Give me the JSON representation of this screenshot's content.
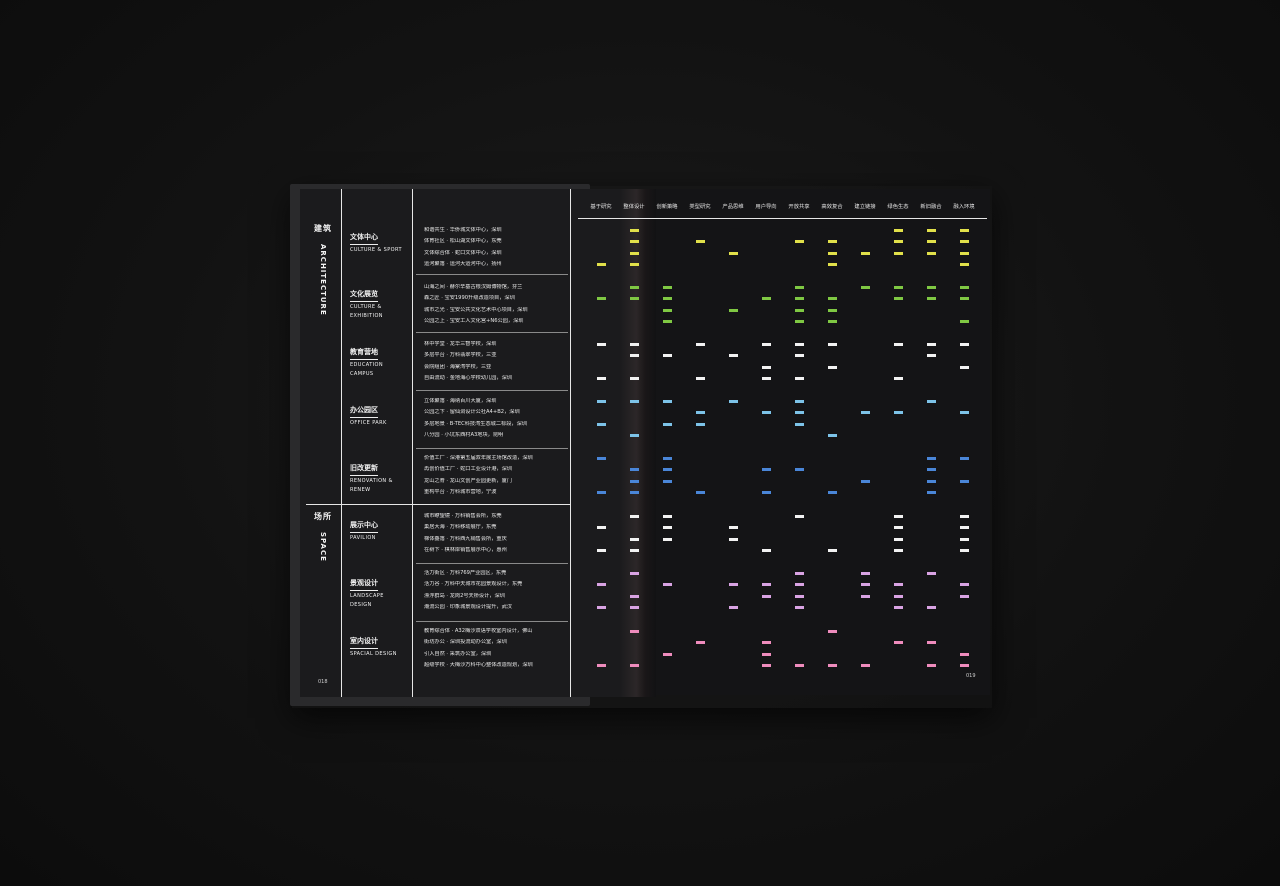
{
  "book": {
    "left_folio": "018",
    "right_folio": "019"
  },
  "columns": [
    "基于研究",
    "整体设计",
    "创新策略",
    "类型研究",
    "产品思维",
    "用户导向",
    "开放共享",
    "高效复合",
    "建立链接",
    "绿色生态",
    "新旧融合",
    "融入环境"
  ],
  "main_categories": [
    {
      "zh": "建筑",
      "en": "ARCHITECTURE"
    },
    {
      "zh": "场所",
      "en": "SPACE"
    }
  ],
  "categories": [
    {
      "zh": "文体中心",
      "en": [
        "CULTURE & SPORT"
      ],
      "color": "#e1e04a",
      "projects": [
        "和谐共生 · 华侨城文体中心，深圳",
        "体育社区 · 松山湖文体中心，东莞",
        "文体综合体 · 蛇口文体中心，深圳",
        "运河聚落 · 运河大运河中心，扬州"
      ],
      "marks": [
        [
          1,
          9,
          10,
          11
        ],
        [
          1,
          3,
          6,
          7,
          9,
          10,
          11
        ],
        [
          1,
          4,
          7,
          8,
          9,
          10,
          11
        ],
        [
          0,
          1,
          7,
          11
        ]
      ]
    },
    {
      "zh": "文化展览",
      "en": [
        "CULTURE &",
        "EXHIBITION"
      ],
      "color": "#7fc843",
      "projects": [
        "山海之间 · 赫尔辛基古根汉姆博物馆，芬兰",
        "森之匠 · 宝安1990升级改造项目，深圳",
        "城市之光 · 宝安公共文化艺术中心项目，深圳",
        "公园之上 · 宝安工人文化宫+N6公园，深圳"
      ],
      "marks": [
        [
          1,
          2,
          6,
          8,
          9,
          10,
          11
        ],
        [
          0,
          1,
          2,
          5,
          6,
          7,
          9,
          10,
          11
        ],
        [
          2,
          4,
          6,
          7
        ],
        [
          2,
          6,
          7,
          11
        ]
      ]
    },
    {
      "zh": "教育营地",
      "en": [
        "EDUCATION",
        "CAMPUS"
      ],
      "color": "#f2f2f2",
      "projects": [
        "林中学堂 · 龙华三智学校，深圳",
        "多层平台 · 万科翡翠学校，三亚",
        "会院组团 · 海棠湾学校，三亚",
        "自由流动 · 金地海心学校幼儿园，深圳"
      ],
      "marks": [
        [
          0,
          1,
          3,
          5,
          6,
          7,
          9,
          10,
          11
        ],
        [
          1,
          2,
          4,
          6,
          10
        ],
        [
          5,
          7,
          11
        ],
        [
          0,
          1,
          3,
          5,
          6,
          9
        ]
      ]
    },
    {
      "zh": "办公园区",
      "en": [
        "OFFICE PARK"
      ],
      "color": "#7dc3e8",
      "projects": [
        "立体聚落 · 海纳百川大厦，深圳",
        "公园之下 · 留仙洞设计公社A4+B2，深圳",
        "多层地景 · B-TEC科技湾生态城二标段，深圳",
        "八分园 · 小坑东西村A3地块，昆明"
      ],
      "marks": [
        [
          0,
          1,
          2,
          4,
          6,
          10
        ],
        [
          3,
          5,
          6,
          8,
          9,
          11
        ],
        [
          0,
          2,
          3,
          6
        ],
        [
          1,
          7
        ]
      ]
    },
    {
      "zh": "旧改更新",
      "en": [
        "RENOVATION &",
        "RENEW"
      ],
      "color": "#4a86d8",
      "projects": [
        "价值工厂 · 深港第五届双年展主场馆改造，深圳",
        "再创价值工厂 · 蛇口工业设计港，深圳",
        "龙山之脊 · 龙山文创产业园更新，厦门",
        "重构平台 · 万科城市营地，宁波"
      ],
      "marks": [
        [
          0,
          2,
          10,
          11
        ],
        [
          1,
          2,
          5,
          6,
          10
        ],
        [
          1,
          2,
          8,
          10,
          11
        ],
        [
          0,
          1,
          3,
          5,
          7,
          10
        ]
      ]
    },
    {
      "zh": "展示中心",
      "en": [
        "PAVILION"
      ],
      "color": "#f2f2f2",
      "projects": [
        "城市瞭望镜 · 万科销售会所，东莞",
        "巢居大海 · 万科移动展厅，东莞",
        "梯体叠落 · 万科西九销售会所，重庆",
        "在树下 · 棋林岸销售展示中心，惠州"
      ],
      "marks": [
        [
          1,
          2,
          6,
          9,
          11
        ],
        [
          0,
          2,
          4,
          9,
          11
        ],
        [
          1,
          2,
          4,
          9,
          11
        ],
        [
          0,
          1,
          5,
          7,
          9,
          11
        ]
      ]
    },
    {
      "zh": "景观设计",
      "en": [
        "LANDSCAPE",
        "DESIGN"
      ],
      "color": "#d9a3e3",
      "projects": [
        "活力街区 · 万科769产业园区，东莞",
        "活力谷 · 万科中天城市花园景观设计，东莞",
        "漂浮群岛 · 龙岗2号天桥设计，深圳",
        "潮流公园 · 印象城景观设计提升，武汉"
      ],
      "marks": [
        [
          1,
          6,
          8,
          10
        ],
        [
          0,
          2,
          4,
          5,
          6,
          8,
          9,
          11
        ],
        [
          1,
          5,
          6,
          8,
          9,
          11
        ],
        [
          0,
          1,
          4,
          6,
          9,
          10
        ]
      ]
    },
    {
      "zh": "室内设计",
      "en": [
        "SPACIAL DESIGN"
      ],
      "color": "#ef8cbd",
      "projects": [
        "教育综合体 · A32梅沙双语学校室内设计，佛山",
        "街坊办公 · 深圳投流动办公室，深圳",
        "引入自然 · 采筑办公室，深圳",
        "超级学校 · 大梅沙万科中心整体改造规划，深圳"
      ],
      "marks": [
        [
          1,
          7
        ],
        [
          3,
          5,
          9,
          10
        ],
        [
          2,
          5,
          11
        ],
        [
          0,
          1,
          5,
          6,
          7,
          8,
          10,
          11
        ]
      ]
    }
  ]
}
